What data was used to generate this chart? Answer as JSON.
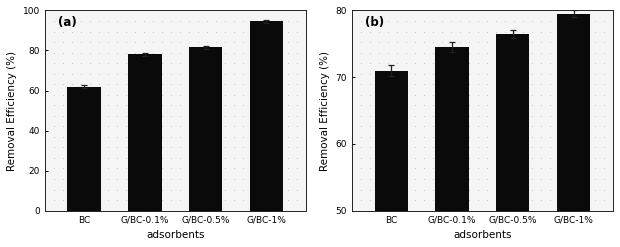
{
  "categories": [
    "BC",
    "G/BC-0.1%",
    "G/BC-0.5%",
    "G/BC-1%"
  ],
  "panel_a": {
    "label": "(a)",
    "values": [
      62.0,
      78.0,
      81.5,
      94.5
    ],
    "errors": [
      0.7,
      0.8,
      0.8,
      0.6
    ],
    "ylim": [
      0,
      100
    ],
    "yticks": [
      0,
      20,
      40,
      60,
      80,
      100
    ],
    "ylabel": "Removal Efficiency (%)",
    "xlabel": "adsorbents"
  },
  "panel_b": {
    "label": "(b)",
    "values": [
      71.0,
      74.5,
      76.5,
      79.5
    ],
    "errors": [
      0.8,
      0.7,
      0.6,
      0.5
    ],
    "ylim": [
      50,
      80
    ],
    "yticks": [
      50,
      60,
      70,
      80
    ],
    "ylabel": "Removal Efficiency (%)",
    "xlabel": "adsorbents"
  },
  "bar_color": "#0a0a0a",
  "bar_width": 0.55,
  "background_color": "#f5f5f5",
  "fig_facecolor": "#ffffff",
  "label_fontsize": 7.5,
  "tick_fontsize": 6.5,
  "panel_label_fontsize": 8.5
}
